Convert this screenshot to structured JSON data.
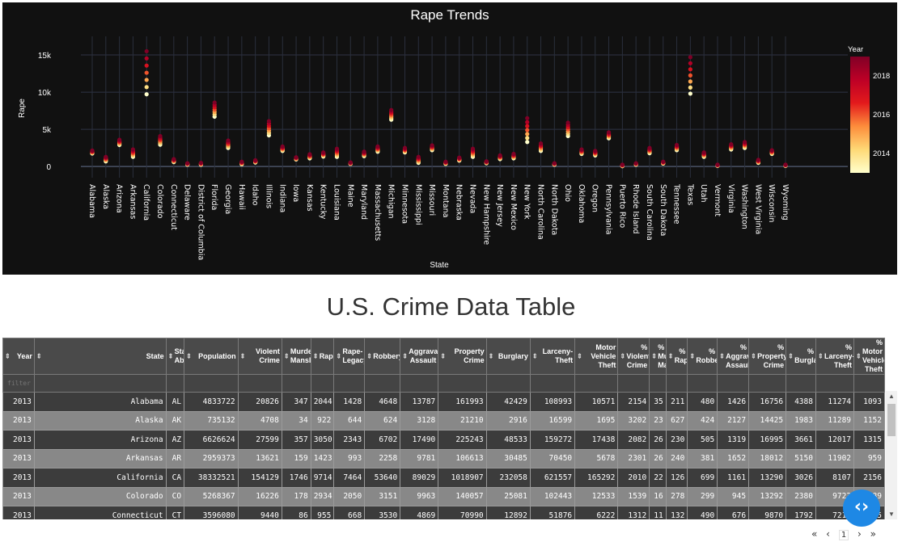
{
  "chart_data": {
    "type": "scatter",
    "title": "Rape Trends",
    "xlabel": "State",
    "ylabel": "Rape",
    "ylim": [
      -1500,
      17500
    ],
    "yticks": [
      0,
      5000,
      10000,
      15000
    ],
    "ytick_labels": [
      "0",
      "5k",
      "10k",
      "15k"
    ],
    "grid": true,
    "colorbar": {
      "title": "Year",
      "min": 2013,
      "max": 2019,
      "ticks": [
        2014,
        2016,
        2018
      ],
      "tick_labels": [
        "2014",
        "2016",
        "2018"
      ]
    },
    "colorscale": [
      "#ffffcc",
      "#fed976",
      "#fd8d3c",
      "#e31a1c",
      "#bd0026",
      "#800026"
    ],
    "years": [
      2013,
      2014,
      2015,
      2016,
      2017,
      2018,
      2019
    ],
    "states": [
      {
        "name": "Alabama",
        "low": 1750,
        "high": 2150
      },
      {
        "name": "Alaska",
        "low": 700,
        "high": 1300
      },
      {
        "name": "Arizona",
        "low": 2900,
        "high": 3600
      },
      {
        "name": "Arkansas",
        "low": 1300,
        "high": 2300
      },
      {
        "name": "California",
        "low": 9714,
        "high": 15500
      },
      {
        "name": "Colorado",
        "low": 2934,
        "high": 4100
      },
      {
        "name": "Connecticut",
        "low": 600,
        "high": 1000
      },
      {
        "name": "Delaware",
        "low": 250,
        "high": 450
      },
      {
        "name": "District of Columbia",
        "low": 250,
        "high": 500
      },
      {
        "name": "Florida",
        "low": 6700,
        "high": 8600
      },
      {
        "name": "Georgia",
        "low": 2500,
        "high": 3500
      },
      {
        "name": "Hawaii",
        "low": 300,
        "high": 650
      },
      {
        "name": "Idaho",
        "low": 550,
        "high": 850
      },
      {
        "name": "Illinois",
        "low": 4200,
        "high": 6100
      },
      {
        "name": "Indiana",
        "low": 2100,
        "high": 2700
      },
      {
        "name": "Iowa",
        "low": 950,
        "high": 1250
      },
      {
        "name": "Kansas",
        "low": 1100,
        "high": 1650
      },
      {
        "name": "Kentucky",
        "low": 1350,
        "high": 1900
      },
      {
        "name": "Louisiana",
        "low": 1300,
        "high": 2400
      },
      {
        "name": "Maine",
        "low": 350,
        "high": 550
      },
      {
        "name": "Maryland",
        "low": 1400,
        "high": 2000
      },
      {
        "name": "Massachusetts",
        "low": 2000,
        "high": 2700
      },
      {
        "name": "Michigan",
        "low": 6300,
        "high": 7600
      },
      {
        "name": "Minnesota",
        "low": 1900,
        "high": 2500
      },
      {
        "name": "Mississippi",
        "low": 500,
        "high": 1300
      },
      {
        "name": "Missouri",
        "low": 2200,
        "high": 2850
      },
      {
        "name": "Montana",
        "low": 350,
        "high": 650
      },
      {
        "name": "Nebraska",
        "low": 800,
        "high": 1200
      },
      {
        "name": "Nevada",
        "low": 1300,
        "high": 2400
      },
      {
        "name": "New Hampshire",
        "low": 450,
        "high": 700
      },
      {
        "name": "New Jersey",
        "low": 1000,
        "high": 1500
      },
      {
        "name": "New Mexico",
        "low": 1100,
        "high": 1700
      },
      {
        "name": "New York",
        "low": 3300,
        "high": 6500
      },
      {
        "name": "North Carolina",
        "low": 2100,
        "high": 3100
      },
      {
        "name": "North Dakota",
        "low": 250,
        "high": 450
      },
      {
        "name": "Ohio",
        "low": 4100,
        "high": 5900
      },
      {
        "name": "Oklahoma",
        "low": 1700,
        "high": 2300
      },
      {
        "name": "Oregon",
        "low": 1500,
        "high": 2100
      },
      {
        "name": "Pennsylvania",
        "low": 3800,
        "high": 4600
      },
      {
        "name": "Puerto Rico",
        "low": 50,
        "high": 250
      },
      {
        "name": "Rhode Island",
        "low": 250,
        "high": 450
      },
      {
        "name": "South Carolina",
        "low": 1800,
        "high": 2500
      },
      {
        "name": "South Dakota",
        "low": 400,
        "high": 650
      },
      {
        "name": "Tennessee",
        "low": 2200,
        "high": 2900
      },
      {
        "name": "Texas",
        "low": 9800,
        "high": 14700
      },
      {
        "name": "Utah",
        "low": 1300,
        "high": 1900
      },
      {
        "name": "Vermont",
        "low": 100,
        "high": 250
      },
      {
        "name": "Virginia",
        "low": 2300,
        "high": 3000
      },
      {
        "name": "Washington",
        "low": 2500,
        "high": 3300
      },
      {
        "name": "West Virginia",
        "low": 500,
        "high": 900
      },
      {
        "name": "Wisconsin",
        "low": 1700,
        "high": 2200
      },
      {
        "name": "Wyoming",
        "low": 100,
        "high": 250
      }
    ]
  },
  "table": {
    "title": "U.S. Crime Data Table",
    "filter_placeholder": "filter data...",
    "columns": [
      "Year",
      "State",
      "State Abbr",
      "Population",
      "Violent Crime",
      "Murder-Manslaughter",
      "Rape",
      "Rape-Legacy",
      "Robbery",
      "Aggravated Assault",
      "Property Crime",
      "Burglary",
      "Larceny-Theft",
      "Motor Vehicle Theft",
      "% Violent Crime",
      "% Murder-Manslaughter",
      "% Rape",
      "% Robbery",
      "% Aggravated Assault",
      "% Property Crime",
      "% Burglary",
      "% Larceny-Theft",
      "% Motor Vehicle Theft"
    ],
    "rows": [
      [
        "2013",
        "Alabama",
        "AL",
        "4833722",
        "20826",
        "347",
        "2044",
        "1428",
        "4648",
        "13787",
        "161993",
        "42429",
        "108993",
        "10571",
        "2154",
        "35",
        "211",
        "480",
        "1426",
        "16756",
        "4388",
        "11274",
        "1093"
      ],
      [
        "2013",
        "Alaska",
        "AK",
        "735132",
        "4708",
        "34",
        "922",
        "644",
        "624",
        "3128",
        "21210",
        "2916",
        "16599",
        "1695",
        "3202",
        "23",
        "627",
        "424",
        "2127",
        "14425",
        "1983",
        "11289",
        "1152"
      ],
      [
        "2013",
        "Arizona",
        "AZ",
        "6626624",
        "27599",
        "357",
        "3050",
        "2343",
        "6702",
        "17490",
        "225243",
        "48533",
        "159272",
        "17438",
        "2082",
        "26",
        "230",
        "505",
        "1319",
        "16995",
        "3661",
        "12017",
        "1315"
      ],
      [
        "2013",
        "Arkansas",
        "AR",
        "2959373",
        "13621",
        "159",
        "1423",
        "993",
        "2258",
        "9781",
        "106613",
        "30485",
        "70450",
        "5678",
        "2301",
        "26",
        "240",
        "381",
        "1652",
        "18012",
        "5150",
        "11902",
        "959"
      ],
      [
        "2013",
        "California",
        "CA",
        "38332521",
        "154129",
        "1746",
        "9714",
        "7464",
        "53640",
        "89029",
        "1018907",
        "232058",
        "621557",
        "165292",
        "2010",
        "22",
        "126",
        "699",
        "1161",
        "13290",
        "3026",
        "8107",
        "2156"
      ],
      [
        "2013",
        "Colorado",
        "CO",
        "5268367",
        "16226",
        "178",
        "2934",
        "2050",
        "3151",
        "9963",
        "140057",
        "25081",
        "102443",
        "12533",
        "1539",
        "16",
        "278",
        "299",
        "945",
        "13292",
        "2380",
        "9723",
        "1189"
      ],
      [
        "2013",
        "Connecticut",
        "CT",
        "3596080",
        "9440",
        "86",
        "955",
        "668",
        "3530",
        "4869",
        "70990",
        "12892",
        "51876",
        "6222",
        "1312",
        "11",
        "132",
        "490",
        "676",
        "9870",
        "1792",
        "7213",
        "865"
      ]
    ]
  },
  "pager": {
    "first": "«",
    "prev": "‹",
    "page": "1",
    "next": "›",
    "last": "»"
  },
  "fab_icon": "code-icon"
}
